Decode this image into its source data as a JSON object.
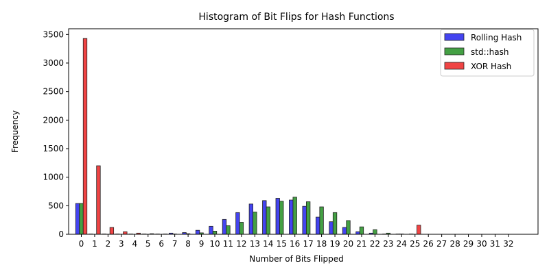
{
  "chart_data": {
    "type": "bar",
    "title": "Histogram of Bit Flips for Hash Functions",
    "xlabel": "Number of Bits Flipped",
    "ylabel": "Frequency",
    "ylim": [
      0,
      3600
    ],
    "yticks": [
      0,
      500,
      1000,
      1500,
      2000,
      2500,
      3000,
      3500
    ],
    "grid": false,
    "legend_position": "top-right",
    "categories": [
      "0",
      "1",
      "2",
      "3",
      "4",
      "5",
      "6",
      "7",
      "8",
      "9",
      "10",
      "11",
      "12",
      "13",
      "14",
      "15",
      "16",
      "17",
      "18",
      "19",
      "20",
      "21",
      "22",
      "23",
      "24",
      "25",
      "26",
      "27",
      "28",
      "29",
      "30",
      "31",
      "32"
    ],
    "series": [
      {
        "name": "Rolling Hash",
        "color": "#4444f0",
        "values": [
          540,
          5,
          5,
          5,
          5,
          5,
          5,
          20,
          30,
          70,
          140,
          260,
          380,
          530,
          590,
          630,
          600,
          490,
          300,
          220,
          120,
          45,
          20,
          5,
          5,
          5,
          0,
          0,
          0,
          0,
          0,
          0,
          0
        ]
      },
      {
        "name": "std::hash",
        "color": "#44a044",
        "values": [
          540,
          0,
          0,
          0,
          0,
          0,
          0,
          5,
          10,
          25,
          55,
          150,
          210,
          390,
          480,
          580,
          650,
          570,
          480,
          380,
          240,
          130,
          80,
          20,
          5,
          0,
          0,
          0,
          0,
          0,
          0,
          0,
          0
        ]
      },
      {
        "name": "XOR Hash",
        "color": "#f04444",
        "values": [
          3430,
          1200,
          120,
          45,
          20,
          10,
          5,
          0,
          0,
          0,
          0,
          0,
          0,
          0,
          0,
          0,
          0,
          0,
          0,
          0,
          0,
          0,
          0,
          0,
          0,
          160,
          0,
          0,
          0,
          0,
          0,
          0,
          0
        ]
      }
    ]
  }
}
